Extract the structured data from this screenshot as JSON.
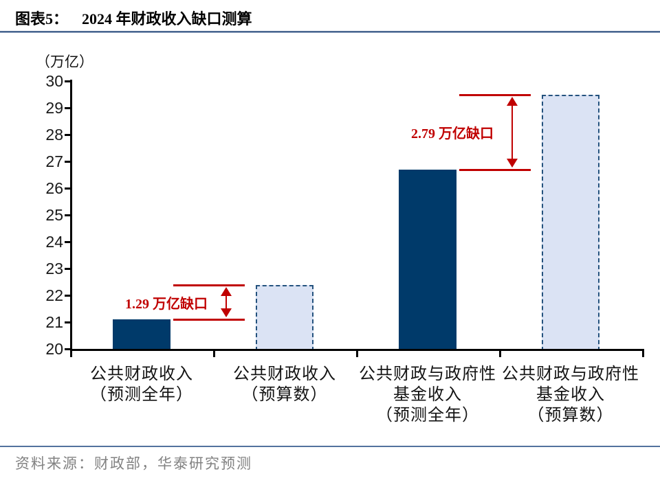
{
  "header": {
    "title_prefix": "图表5：",
    "title": "2024 年财政收入缺口测算"
  },
  "chart_data": {
    "type": "bar",
    "title": "2024 年财政收入缺口测算",
    "unit_label": "（万亿）",
    "xlabel": "",
    "ylabel": "（万亿）",
    "ylim": [
      20,
      30
    ],
    "yticks": [
      20,
      21,
      22,
      23,
      24,
      25,
      26,
      27,
      28,
      29,
      30
    ],
    "grid": false,
    "legend": "none",
    "categories": [
      {
        "lines": [
          "公共财政收入",
          "（预测全年）"
        ]
      },
      {
        "lines": [
          "公共财政收入",
          "（预算数）"
        ]
      },
      {
        "lines": [
          "公共财政与政府性",
          "基金收入",
          "（预测全年）"
        ]
      },
      {
        "lines": [
          "公共财政与政府性",
          "基金收入",
          "（预算数）"
        ]
      }
    ],
    "values": [
      21.1,
      22.39,
      26.7,
      29.49
    ],
    "bar_styles": [
      "solid",
      "dashed",
      "solid",
      "dashed"
    ],
    "annotations": [
      {
        "label": "1.29 万亿缺口",
        "between": [
          0,
          1
        ],
        "from_value": 21.1,
        "to_value": 22.39
      },
      {
        "label": "2.79 万亿缺口",
        "between": [
          2,
          3
        ],
        "from_value": 26.7,
        "to_value": 29.49
      }
    ],
    "colors": {
      "solid_fill": "#003a6a",
      "dashed_fill": "#dbe3f4",
      "dashed_border": "#24527e",
      "annotation_red": "#c00000",
      "axis": "#000000"
    }
  },
  "footer": {
    "source": "资料来源：财政部，华泰研究预测"
  }
}
